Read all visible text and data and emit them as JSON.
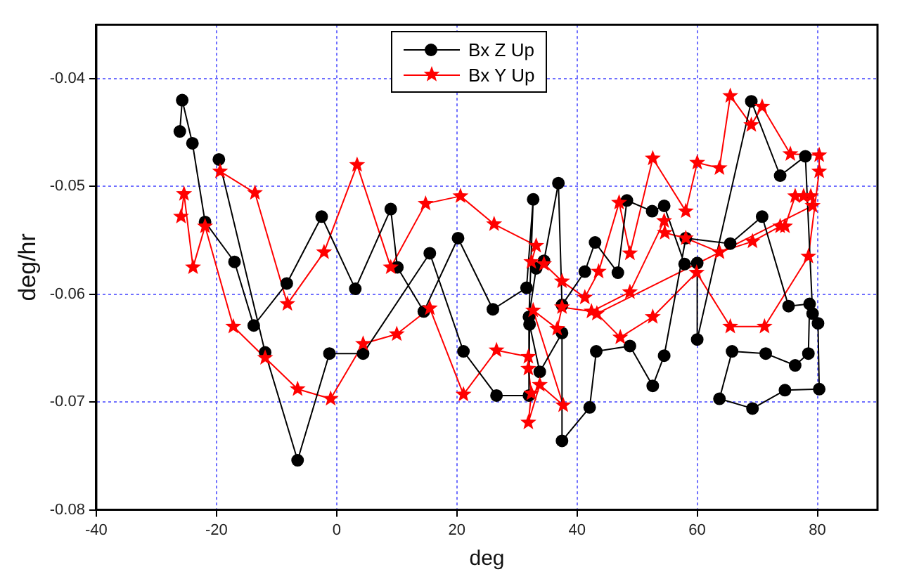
{
  "chart_data": {
    "type": "line",
    "xlabel": "deg",
    "ylabel": "deg/hr",
    "xlim": [
      -40,
      90
    ],
    "xticks": [
      -40,
      -20,
      0,
      20,
      40,
      60,
      80
    ],
    "ylim": [
      -0.08,
      -0.035
    ],
    "yticks": [
      -0.08,
      -0.07,
      -0.06,
      -0.05,
      -0.04
    ],
    "grid": true,
    "legend": "top right",
    "line_style": "solid",
    "series": [
      {
        "name": "Bx Z Up",
        "color": "#000000",
        "marker": "circle",
        "x": [
          -26.1,
          -25.7,
          -24.0,
          -21.9,
          -17.0,
          -13.8,
          -8.3,
          -2.5,
          3.1,
          9.0,
          10.1,
          14.5,
          20.2,
          26.0,
          31.6,
          32.7,
          32.0,
          33.2,
          34.5,
          36.9,
          37.5,
          41.3,
          43.0,
          46.8,
          48.3,
          52.5,
          54.5,
          57.9,
          60.0,
          60.0,
          69.0,
          73.8,
          78.0,
          79.2,
          80.1,
          80.3,
          74.6,
          69.2,
          63.7,
          65.8,
          71.4,
          76.3,
          78.5,
          78.7,
          75.2,
          70.8,
          65.5,
          58.1,
          54.5,
          52.6,
          48.8,
          43.2,
          42.1,
          37.5,
          37.5,
          33.8,
          32.1,
          32.0,
          26.6,
          21.1,
          15.5,
          4.4,
          -1.2,
          -6.5,
          -11.9,
          -19.6
        ],
        "values": [
          -0.0449,
          -0.042,
          -0.046,
          -0.0533,
          -0.057,
          -0.0629,
          -0.059,
          -0.0528,
          -0.0595,
          -0.0521,
          -0.0575,
          -0.0616,
          -0.0548,
          -0.0614,
          -0.0594,
          -0.0512,
          -0.0621,
          -0.0576,
          -0.0569,
          -0.0497,
          -0.061,
          -0.0579,
          -0.0552,
          -0.058,
          -0.0513,
          -0.0523,
          -0.0518,
          -0.0572,
          -0.0571,
          -0.0642,
          -0.0421,
          -0.049,
          -0.0472,
          -0.0618,
          -0.0627,
          -0.0688,
          -0.0689,
          -0.0706,
          -0.0697,
          -0.0653,
          -0.0655,
          -0.0666,
          -0.0655,
          -0.0609,
          -0.0611,
          -0.0528,
          -0.0553,
          -0.0548,
          -0.0657,
          -0.0685,
          -0.0648,
          -0.0653,
          -0.0705,
          -0.0736,
          -0.0636,
          -0.0672,
          -0.0628,
          -0.0694,
          -0.0694,
          -0.0653,
          -0.0562,
          -0.0655,
          -0.0655,
          -0.0754,
          -0.0654,
          -0.0475
        ]
      },
      {
        "name": "Bx Y Up",
        "color": "#ff0000",
        "marker": "star",
        "x": [
          -25.9,
          -25.4,
          -23.9,
          -21.9,
          -17.2,
          -11.9,
          -6.5,
          -1.0,
          4.4,
          10.0,
          15.5,
          21.1,
          26.6,
          31.9,
          31.9,
          32.4,
          31.9,
          33.8,
          37.7,
          32.7,
          36.7,
          37.5,
          42.4,
          48.8,
          54.5,
          54.6,
          58.1,
          63.7,
          69.2,
          73.8,
          74.6,
          76.3,
          77.7,
          78.9,
          79.2,
          43.3,
          47.2,
          52.6,
          59.9,
          65.5,
          71.2,
          78.5,
          80.3,
          80.3,
          75.5,
          70.8,
          69.0,
          65.5,
          63.7,
          60.0,
          58.1,
          52.6,
          48.8,
          47.0,
          43.6,
          41.3,
          37.5,
          34.5,
          32.4,
          33.2,
          26.2,
          20.6,
          14.8,
          9.0,
          3.4,
          -2.1,
          -8.2,
          -13.6,
          -19.4
        ],
        "values": [
          -0.0528,
          -0.0507,
          -0.0575,
          -0.0537,
          -0.063,
          -0.0659,
          -0.0688,
          -0.0697,
          -0.0646,
          -0.0637,
          -0.0613,
          -0.0693,
          -0.0652,
          -0.0658,
          -0.0669,
          -0.0692,
          -0.0719,
          -0.0684,
          -0.0703,
          -0.0615,
          -0.0632,
          -0.0612,
          -0.0616,
          -0.0598,
          -0.0532,
          -0.0543,
          -0.0548,
          -0.0561,
          -0.0551,
          -0.0537,
          -0.0537,
          -0.0509,
          -0.0509,
          -0.0509,
          -0.0518,
          -0.0618,
          -0.064,
          -0.0621,
          -0.058,
          -0.063,
          -0.063,
          -0.0565,
          -0.0486,
          -0.0471,
          -0.047,
          -0.0426,
          -0.0443,
          -0.0416,
          -0.0483,
          -0.0478,
          -0.0523,
          -0.0474,
          -0.0562,
          -0.0515,
          -0.0579,
          -0.0603,
          -0.0588,
          -0.0572,
          -0.057,
          -0.0555,
          -0.0535,
          -0.0509,
          -0.0516,
          -0.0575,
          -0.048,
          -0.0561,
          -0.0609,
          -0.0506,
          -0.0486
        ]
      }
    ]
  }
}
